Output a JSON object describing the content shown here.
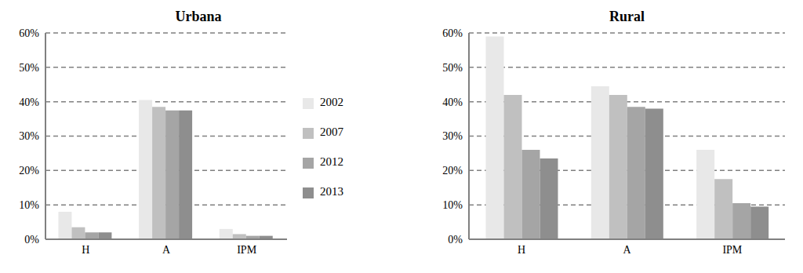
{
  "chart_data": [
    {
      "type": "bar",
      "title": "Urbana",
      "categories": [
        "H",
        "A",
        "IPM"
      ],
      "series": [
        {
          "name": "2002",
          "color": "#e8e8e8",
          "values": [
            8,
            40.5,
            3
          ]
        },
        {
          "name": "2007",
          "color": "#c0c0c0",
          "values": [
            3.5,
            38.5,
            1.5
          ]
        },
        {
          "name": "2012",
          "color": "#a5a5a5",
          "values": [
            2,
            37.5,
            1
          ]
        },
        {
          "name": "2013",
          "color": "#8e8e8e",
          "values": [
            2,
            37.5,
            1
          ]
        }
      ],
      "ylim": [
        0,
        60
      ],
      "yticks": [
        {
          "value": 0,
          "label": "0%"
        },
        {
          "value": 10,
          "label": "10%"
        },
        {
          "value": 20,
          "label": "20%"
        },
        {
          "value": 30,
          "label": "30%"
        },
        {
          "value": 40,
          "label": "40%"
        },
        {
          "value": 50,
          "label": "50%"
        },
        {
          "value": 60,
          "label": "60%"
        }
      ],
      "grid": true,
      "legend": "right"
    },
    {
      "type": "bar",
      "title": "Rural",
      "categories": [
        "H",
        "A",
        "IPM"
      ],
      "series": [
        {
          "name": "2002",
          "color": "#e8e8e8",
          "values": [
            59,
            44.5,
            26
          ]
        },
        {
          "name": "2007",
          "color": "#c0c0c0",
          "values": [
            42,
            42,
            17.5
          ]
        },
        {
          "name": "2012",
          "color": "#a5a5a5",
          "values": [
            26,
            38.5,
            10.5
          ]
        },
        {
          "name": "2013",
          "color": "#8e8e8e",
          "values": [
            23.5,
            38,
            9.5
          ]
        }
      ],
      "ylim": [
        0,
        60
      ],
      "yticks": [
        {
          "value": 0,
          "label": "0%"
        },
        {
          "value": 10,
          "label": "10%"
        },
        {
          "value": 20,
          "label": "20%"
        },
        {
          "value": 30,
          "label": "30%"
        },
        {
          "value": 40,
          "label": "40%"
        },
        {
          "value": 50,
          "label": "50%"
        },
        {
          "value": 60,
          "label": "60%"
        }
      ],
      "grid": true
    }
  ]
}
